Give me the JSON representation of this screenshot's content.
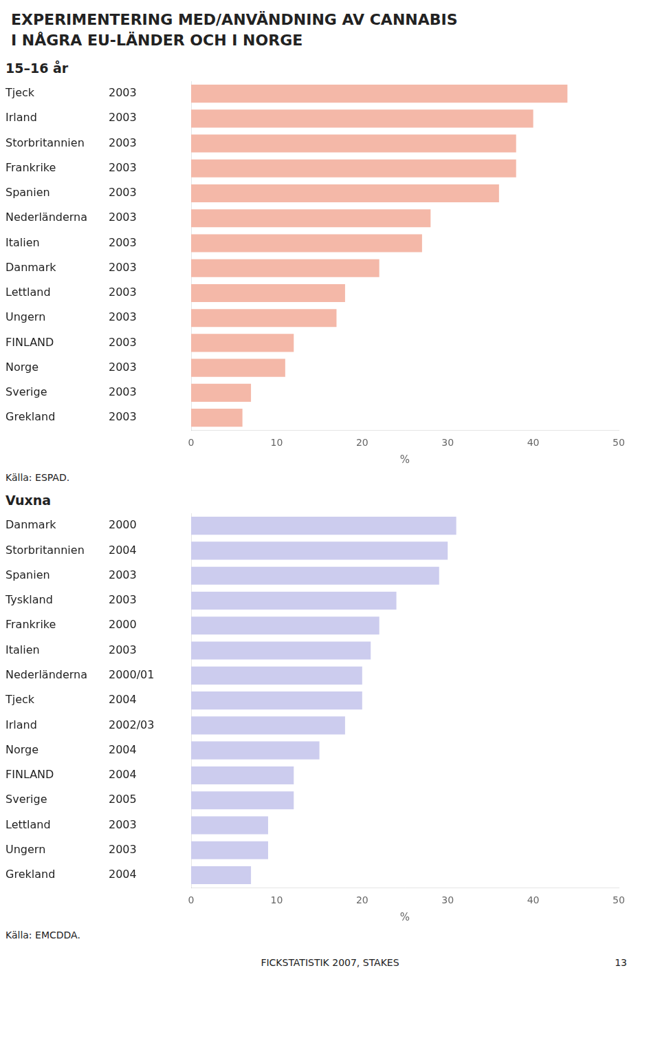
{
  "title": [
    "EXPERIMENTERING MED/ANVÄNDNING AV CANNABIS",
    "I NÅGRA EU-LÄNDER OCH I NORGE"
  ],
  "footer": "FICKSTATISTIK 2007, STAKES",
  "page_number": "13",
  "chart_data": [
    {
      "type": "bar",
      "orientation": "horizontal",
      "subtitle": "15–16 år",
      "xlabel": "%",
      "categories": [
        "Tjeck",
        "Irland",
        "Storbritannien",
        "Frankrike",
        "Spanien",
        "Nederländerna",
        "Italien",
        "Danmark",
        "Lettland",
        "Ungern",
        "FINLAND",
        "Norge",
        "Sverige",
        "Grekland"
      ],
      "years": [
        "2003",
        "2003",
        "2003",
        "2003",
        "2003",
        "2003",
        "2003",
        "2003",
        "2003",
        "2003",
        "2003",
        "2003",
        "2003",
        "2003"
      ],
      "values": [
        44,
        40,
        38,
        38,
        36,
        28,
        27,
        22,
        18,
        17,
        12,
        11,
        7,
        6
      ],
      "color": "#F4B8A8",
      "source": "Källa: ESPAD.",
      "xlim": [
        0,
        50
      ],
      "xticks": [
        0,
        10,
        20,
        30,
        40,
        50
      ],
      "grid": false,
      "legend": null
    },
    {
      "type": "bar",
      "orientation": "horizontal",
      "subtitle": "Vuxna",
      "xlabel": "%",
      "categories": [
        "Danmark",
        "Storbritannien",
        "Spanien",
        "Tyskland",
        "Frankrike",
        "Italien",
        "Nederländerna",
        "Tjeck",
        "Irland",
        "Norge",
        "FINLAND",
        "Sverige",
        "Lettland",
        "Ungern",
        "Grekland"
      ],
      "years": [
        "2000",
        "2004",
        "2003",
        "2003",
        "2000",
        "2003",
        "2000/01",
        "2004",
        "2002/03",
        "2004",
        "2004",
        "2005",
        "2003",
        "2003",
        "2004"
      ],
      "values": [
        31,
        30,
        29,
        24,
        22,
        21,
        20,
        20,
        18,
        15,
        12,
        12,
        9,
        9,
        7
      ],
      "color": "#CCCCEE",
      "source": "Källa: EMCDDA.",
      "xlim": [
        0,
        50
      ],
      "xticks": [
        0,
        10,
        20,
        30,
        40,
        50
      ],
      "grid": false,
      "legend": null
    }
  ]
}
